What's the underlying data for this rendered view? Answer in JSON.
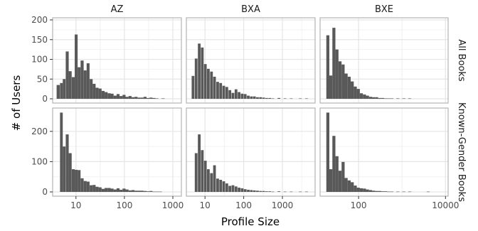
{
  "chart_data": {
    "type": "bar",
    "subtype": "faceted-histogram",
    "xlabel": "Profile Size",
    "ylabel": "# of Users",
    "x_scale": "log",
    "grid": true,
    "legend": "none",
    "colors": {
      "bar": "#595959",
      "panel_border": "#b3b3b3",
      "grid_major": "#e5e5e5",
      "grid_minor": "#f2f2f2"
    },
    "columns": [
      "AZ",
      "BXA",
      "BXE"
    ],
    "rows": [
      {
        "label": "All Books",
        "ylim": [
          0,
          200
        ],
        "yticks": [
          0,
          50,
          100,
          150,
          200
        ]
      },
      {
        "label": "Known-Gender Books",
        "ylim": [
          0,
          270
        ],
        "yticks": [
          0,
          100,
          200
        ]
      }
    ],
    "panels": [
      {
        "column": "AZ",
        "row": "All Books",
        "xlim": [
          3.3,
          1500
        ],
        "xticks": [
          10,
          100,
          1000
        ],
        "bins": [
          [
            4.3,
            35
          ],
          [
            5.0,
            40
          ],
          [
            5.7,
            50
          ],
          [
            6.6,
            120
          ],
          [
            7.6,
            70
          ],
          [
            8.8,
            55
          ],
          [
            10.1,
            163
          ],
          [
            11.6,
            80
          ],
          [
            13.4,
            97
          ],
          [
            15.5,
            72
          ],
          [
            17.8,
            90
          ],
          [
            20.6,
            50
          ],
          [
            23.7,
            38
          ],
          [
            27.3,
            28
          ],
          [
            31.5,
            26
          ],
          [
            36.3,
            20
          ],
          [
            41.9,
            17
          ],
          [
            48.3,
            14
          ],
          [
            55.7,
            13
          ],
          [
            64.2,
            8
          ],
          [
            74.0,
            12
          ],
          [
            85.3,
            7
          ],
          [
            98.3,
            10
          ],
          [
            113.4,
            5
          ],
          [
            130.7,
            7
          ],
          [
            150.7,
            4
          ],
          [
            173.8,
            5
          ],
          [
            200.4,
            3
          ],
          [
            231.1,
            3
          ],
          [
            266.5,
            5
          ],
          [
            307.3,
            2
          ],
          [
            354.3,
            3
          ],
          [
            408.5,
            2
          ],
          [
            471.1,
            1
          ],
          [
            625,
            1
          ]
        ]
      },
      {
        "column": "BXA",
        "row": "All Books",
        "xlim": [
          3.3,
          7000
        ],
        "xticks": [
          10,
          100,
          1000
        ],
        "bins": [
          [
            4.9,
            58
          ],
          [
            5.9,
            102
          ],
          [
            7.1,
            140
          ],
          [
            8.5,
            130
          ],
          [
            10.2,
            88
          ],
          [
            12.2,
            76
          ],
          [
            14.7,
            69
          ],
          [
            17.6,
            56
          ],
          [
            21.2,
            43
          ],
          [
            25.4,
            40
          ],
          [
            30.5,
            33
          ],
          [
            36.6,
            30
          ],
          [
            43.9,
            22
          ],
          [
            52.7,
            15
          ],
          [
            63.3,
            24
          ],
          [
            75.9,
            17
          ],
          [
            91.1,
            13
          ],
          [
            109.3,
            12
          ],
          [
            131.2,
            8
          ],
          [
            157.5,
            6
          ],
          [
            189,
            6
          ],
          [
            226.8,
            4
          ],
          [
            272.2,
            4
          ],
          [
            326.6,
            3
          ],
          [
            392,
            2
          ],
          [
            470.4,
            2
          ],
          [
            564.4,
            1
          ],
          [
            812.7,
            2
          ],
          [
            1170,
            1
          ],
          [
            1686,
            1
          ],
          [
            2900,
            1
          ],
          [
            4200,
            1
          ]
        ]
      },
      {
        "column": "BXE",
        "row": "All Books",
        "xlim": [
          13,
          11500
        ],
        "xticks": [
          100,
          10000
        ],
        "bins": [
          [
            19.6,
            161
          ],
          [
            23.0,
            59
          ],
          [
            27.0,
            180
          ],
          [
            31.8,
            125
          ],
          [
            37.4,
            95
          ],
          [
            44.0,
            87
          ],
          [
            51.7,
            64
          ],
          [
            60.7,
            56
          ],
          [
            71.4,
            44
          ],
          [
            83.9,
            31
          ],
          [
            98.6,
            25
          ],
          [
            115.9,
            14
          ],
          [
            136.2,
            11
          ],
          [
            160.1,
            8
          ],
          [
            188.1,
            5
          ],
          [
            221.1,
            4
          ],
          [
            259.8,
            4
          ],
          [
            305.4,
            2
          ],
          [
            358.9,
            2
          ],
          [
            421.8,
            1
          ],
          [
            495.6,
            1
          ],
          [
            582.5,
            1
          ],
          [
            800,
            1
          ],
          [
            1100,
            1
          ],
          [
            1500,
            1
          ]
        ]
      },
      {
        "column": "AZ",
        "row": "Known-Gender Books",
        "xlim": [
          3.3,
          1500
        ],
        "xticks": [
          10,
          100,
          1000
        ],
        "bins": [
          [
            5.0,
            262
          ],
          [
            5.7,
            150
          ],
          [
            6.6,
            190
          ],
          [
            7.6,
            128
          ],
          [
            8.8,
            75
          ],
          [
            10.1,
            73
          ],
          [
            11.6,
            72
          ],
          [
            13.4,
            45
          ],
          [
            15.5,
            36
          ],
          [
            17.8,
            34
          ],
          [
            20.6,
            22
          ],
          [
            23.7,
            23
          ],
          [
            27.3,
            17
          ],
          [
            31.5,
            15
          ],
          [
            36.3,
            10
          ],
          [
            41.9,
            13
          ],
          [
            48.3,
            13
          ],
          [
            55.7,
            11
          ],
          [
            64.2,
            8
          ],
          [
            74.0,
            12
          ],
          [
            85.3,
            7
          ],
          [
            98.3,
            11
          ],
          [
            113.4,
            8
          ],
          [
            130.7,
            5
          ],
          [
            150.7,
            6
          ],
          [
            173.8,
            4
          ],
          [
            200.4,
            4
          ],
          [
            231.1,
            4
          ],
          [
            266.5,
            3
          ],
          [
            307.3,
            2
          ],
          [
            354.3,
            3
          ],
          [
            408.5,
            1
          ],
          [
            471.1,
            1
          ],
          [
            550,
            1
          ]
        ]
      },
      {
        "column": "BXA",
        "row": "Known-Gender Books",
        "xlim": [
          3.3,
          7000
        ],
        "xticks": [
          10,
          100,
          1000
        ],
        "bins": [
          [
            5.9,
            128
          ],
          [
            7.1,
            190
          ],
          [
            8.5,
            138
          ],
          [
            10.2,
            103
          ],
          [
            12.2,
            75
          ],
          [
            14.7,
            62
          ],
          [
            17.6,
            88
          ],
          [
            21.2,
            44
          ],
          [
            25.4,
            40
          ],
          [
            30.5,
            35
          ],
          [
            36.6,
            28
          ],
          [
            43.9,
            20
          ],
          [
            52.7,
            22
          ],
          [
            63.3,
            18
          ],
          [
            75.9,
            14
          ],
          [
            91.1,
            12
          ],
          [
            109.3,
            9
          ],
          [
            131.2,
            7
          ],
          [
            157.5,
            6
          ],
          [
            189,
            5
          ],
          [
            226.8,
            4
          ],
          [
            272.2,
            3
          ],
          [
            326.6,
            3
          ],
          [
            392,
            2
          ],
          [
            470.4,
            2
          ],
          [
            564.4,
            1
          ],
          [
            812.7,
            2
          ],
          [
            1170,
            1
          ],
          [
            1686,
            1
          ],
          [
            2900,
            1
          ],
          [
            4200,
            1
          ]
        ]
      },
      {
        "column": "BXE",
        "row": "Known-Gender Books",
        "xlim": [
          13,
          11500
        ],
        "xticks": [
          100,
          10000
        ],
        "bins": [
          [
            19.6,
            262
          ],
          [
            23.0,
            75
          ],
          [
            27.0,
            185
          ],
          [
            31.8,
            118
          ],
          [
            37.4,
            70
          ],
          [
            44.0,
            99
          ],
          [
            51.7,
            46
          ],
          [
            60.7,
            38
          ],
          [
            71.4,
            32
          ],
          [
            83.9,
            21
          ],
          [
            98.6,
            14
          ],
          [
            115.9,
            12
          ],
          [
            136.2,
            11
          ],
          [
            160.1,
            8
          ],
          [
            188.1,
            6
          ],
          [
            221.1,
            4
          ],
          [
            259.8,
            3
          ],
          [
            305.4,
            3
          ],
          [
            358.9,
            2
          ],
          [
            421.8,
            2
          ],
          [
            495.6,
            1
          ],
          [
            582.5,
            1
          ],
          [
            800,
            1
          ],
          [
            1100,
            1
          ],
          [
            1500,
            1
          ],
          [
            4000,
            1
          ]
        ]
      }
    ]
  }
}
